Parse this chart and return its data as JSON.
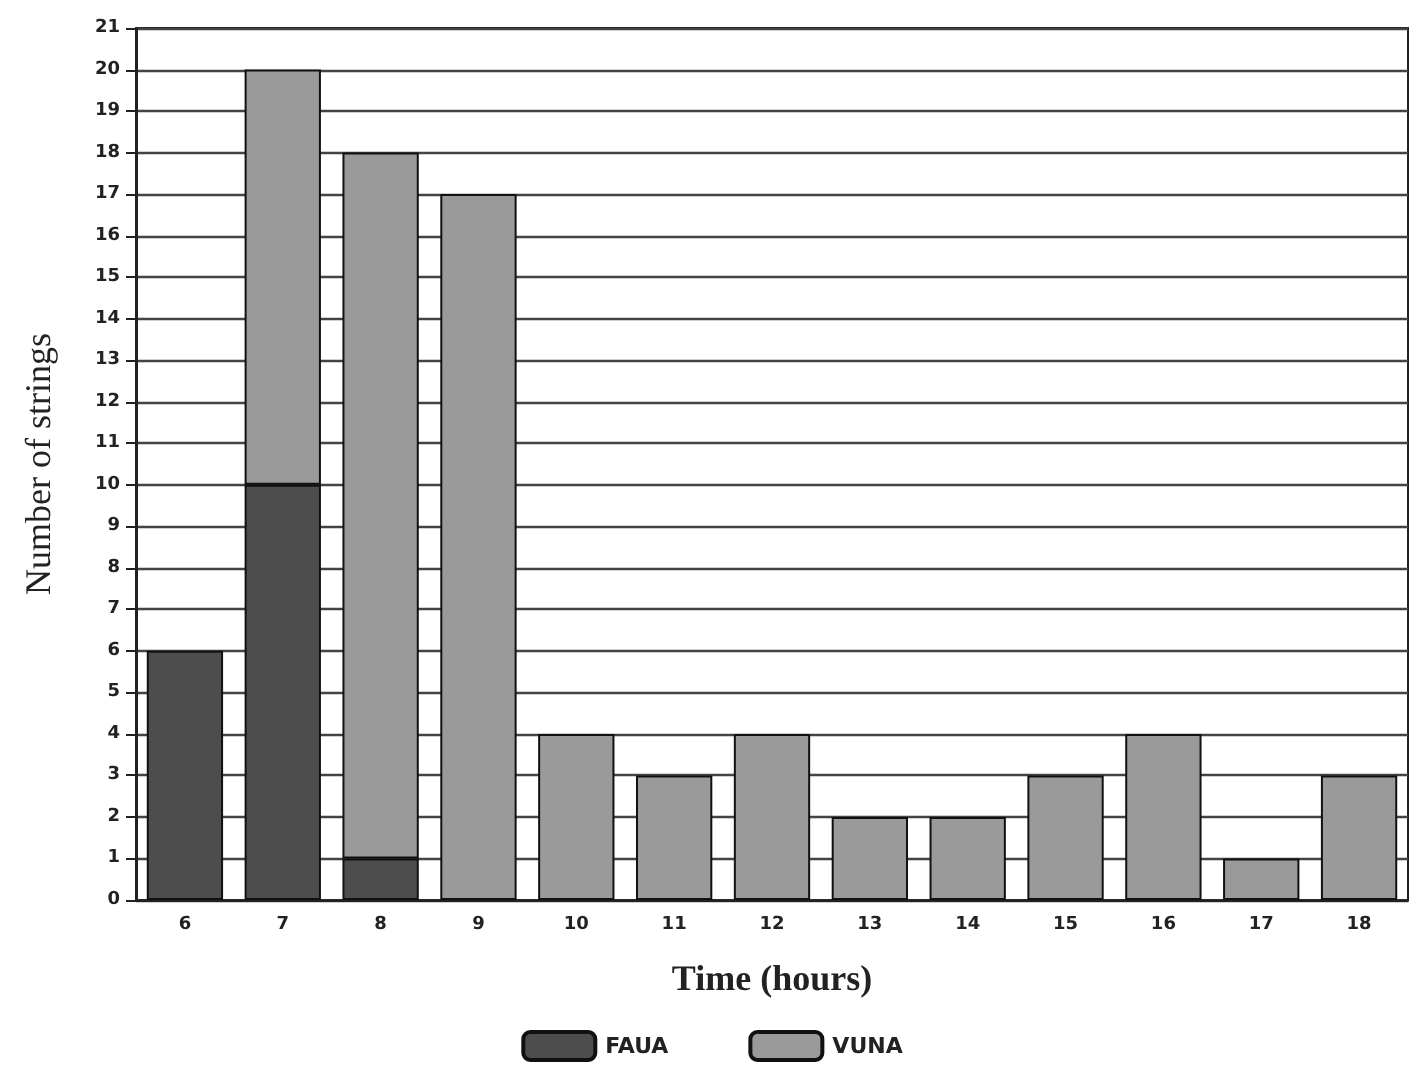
{
  "chart_data": {
    "type": "bar",
    "stacked": true,
    "xlabel": "Time (hours)",
    "ylabel": "Number of strings",
    "categories": [
      "6",
      "7",
      "8",
      "9",
      "10",
      "11",
      "12",
      "13",
      "14",
      "15",
      "16",
      "17",
      "18"
    ],
    "series": [
      {
        "name": "FAUA",
        "color": "#4d4d4d",
        "values": [
          6,
          10,
          1,
          0,
          0,
          0,
          0,
          0,
          0,
          0,
          0,
          0,
          0
        ]
      },
      {
        "name": "VUNA",
        "color": "#9a9a9a",
        "values": [
          0,
          10,
          17,
          17,
          4,
          3,
          4,
          2,
          2,
          3,
          4,
          1,
          3
        ]
      }
    ],
    "ylim": [
      0,
      21
    ],
    "yticks": [
      0,
      1,
      2,
      3,
      4,
      5,
      6,
      7,
      8,
      9,
      10,
      11,
      12,
      13,
      14,
      15,
      16,
      17,
      18,
      19,
      20,
      21
    ],
    "grid": "y",
    "legend": "bottom"
  }
}
